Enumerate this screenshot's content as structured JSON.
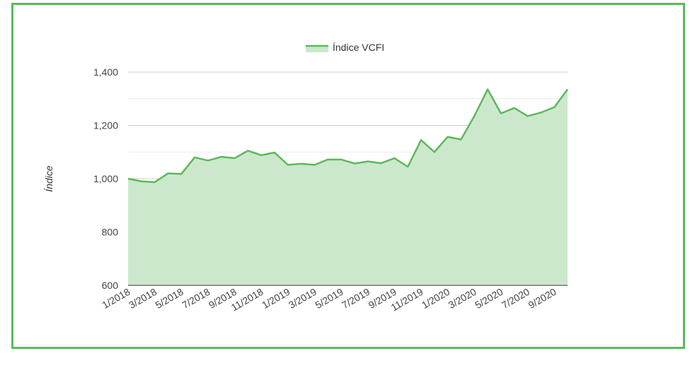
{
  "chart_data": {
    "type": "area",
    "ylabel": "Índice",
    "xlabel": "",
    "ylim": [
      600,
      1400
    ],
    "yticks": [
      600,
      800,
      1000,
      1200,
      1400
    ],
    "ytick_labels": [
      "600",
      "800",
      "1,000",
      "1,200",
      "1,400"
    ],
    "grid": true,
    "legend_position": "top",
    "colors": {
      "line": "#5cb85c",
      "fill": "#cce8cc",
      "frame": "#5cb85c"
    },
    "x_tick_labels": [
      "1/2018",
      "3/2018",
      "5/2018",
      "7/2018",
      "9/2018",
      "11/2018",
      "1/2019",
      "3/2019",
      "5/2019",
      "7/2019",
      "9/2019",
      "11/2019",
      "1/2020",
      "3/2020",
      "5/2020",
      "7/2020",
      "9/2020"
    ],
    "x": [
      "1/2018",
      "2/2018",
      "3/2018",
      "4/2018",
      "5/2018",
      "6/2018",
      "7/2018",
      "8/2018",
      "9/2018",
      "10/2018",
      "11/2018",
      "12/2018",
      "1/2019",
      "2/2019",
      "3/2019",
      "4/2019",
      "5/2019",
      "6/2019",
      "7/2019",
      "8/2019",
      "9/2019",
      "10/2019",
      "11/2019",
      "12/2019",
      "1/2020",
      "2/2020",
      "3/2020",
      "4/2020",
      "5/2020",
      "6/2020",
      "7/2020",
      "8/2020",
      "9/2020",
      "10/2020"
    ],
    "series": [
      {
        "name": "Índice VCFI",
        "values": [
          1000,
          990,
          987,
          1020,
          1018,
          1080,
          1068,
          1082,
          1077,
          1105,
          1088,
          1098,
          1052,
          1056,
          1052,
          1072,
          1072,
          1057,
          1065,
          1058,
          1077,
          1045,
          1145,
          1100,
          1157,
          1147,
          1235,
          1335,
          1245,
          1265,
          1235,
          1248,
          1268,
          1335
        ]
      }
    ]
  }
}
